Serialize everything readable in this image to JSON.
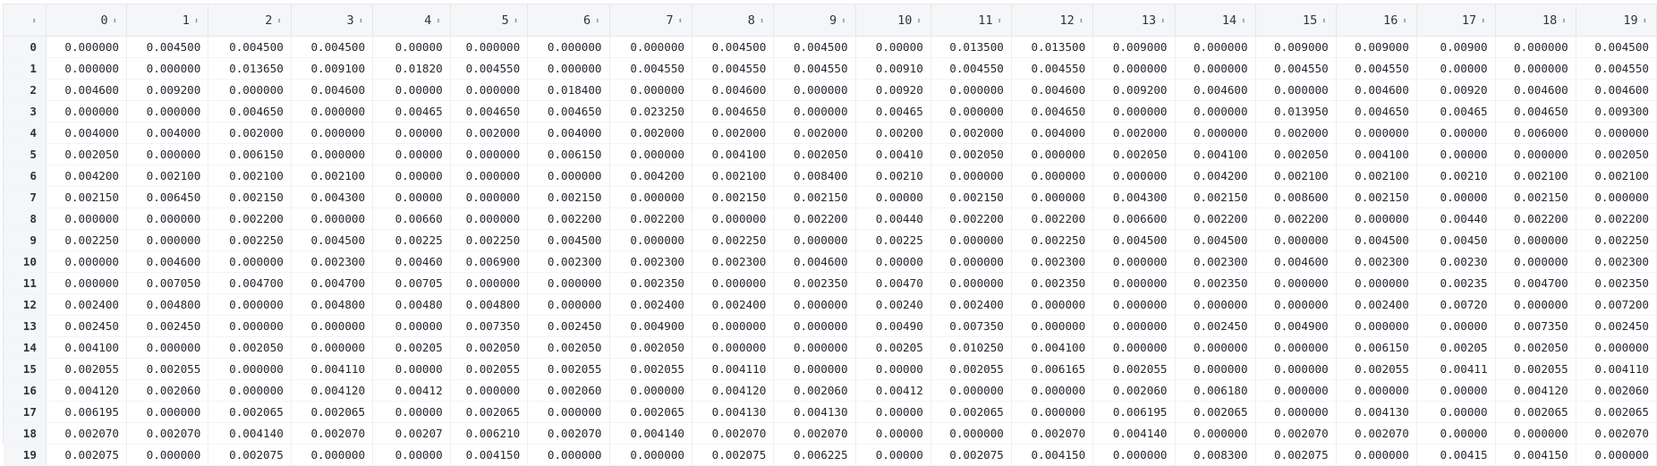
{
  "table": {
    "index_header": "",
    "columns": [
      "0",
      "1",
      "2",
      "3",
      "4",
      "5",
      "6",
      "7",
      "8",
      "9",
      "10",
      "11",
      "12",
      "13",
      "14",
      "15",
      "16",
      "17",
      "18",
      "19"
    ],
    "rows": [
      {
        "index": "0",
        "cells": [
          "0.000000",
          "0.004500",
          "0.004500",
          "0.004500",
          "0.00000",
          "0.000000",
          "0.000000",
          "0.000000",
          "0.004500",
          "0.004500",
          "0.00000",
          "0.013500",
          "0.013500",
          "0.009000",
          "0.000000",
          "0.009000",
          "0.009000",
          "0.00900",
          "0.000000",
          "0.004500"
        ]
      },
      {
        "index": "1",
        "cells": [
          "0.000000",
          "0.000000",
          "0.013650",
          "0.009100",
          "0.01820",
          "0.004550",
          "0.000000",
          "0.004550",
          "0.004550",
          "0.004550",
          "0.00910",
          "0.004550",
          "0.004550",
          "0.000000",
          "0.000000",
          "0.004550",
          "0.004550",
          "0.00000",
          "0.000000",
          "0.004550"
        ]
      },
      {
        "index": "2",
        "cells": [
          "0.004600",
          "0.009200",
          "0.000000",
          "0.004600",
          "0.00000",
          "0.000000",
          "0.018400",
          "0.000000",
          "0.004600",
          "0.000000",
          "0.00920",
          "0.000000",
          "0.004600",
          "0.009200",
          "0.004600",
          "0.000000",
          "0.004600",
          "0.00920",
          "0.004600",
          "0.004600"
        ]
      },
      {
        "index": "3",
        "cells": [
          "0.000000",
          "0.000000",
          "0.004650",
          "0.000000",
          "0.00465",
          "0.004650",
          "0.004650",
          "0.023250",
          "0.004650",
          "0.000000",
          "0.00465",
          "0.000000",
          "0.004650",
          "0.000000",
          "0.000000",
          "0.013950",
          "0.004650",
          "0.00465",
          "0.004650",
          "0.009300"
        ]
      },
      {
        "index": "4",
        "cells": [
          "0.004000",
          "0.004000",
          "0.002000",
          "0.000000",
          "0.00000",
          "0.002000",
          "0.004000",
          "0.002000",
          "0.002000",
          "0.002000",
          "0.00200",
          "0.002000",
          "0.004000",
          "0.002000",
          "0.000000",
          "0.002000",
          "0.000000",
          "0.00000",
          "0.006000",
          "0.000000"
        ]
      },
      {
        "index": "5",
        "cells": [
          "0.002050",
          "0.000000",
          "0.006150",
          "0.000000",
          "0.00000",
          "0.000000",
          "0.006150",
          "0.000000",
          "0.004100",
          "0.002050",
          "0.00410",
          "0.002050",
          "0.000000",
          "0.002050",
          "0.004100",
          "0.002050",
          "0.004100",
          "0.00000",
          "0.000000",
          "0.002050"
        ]
      },
      {
        "index": "6",
        "cells": [
          "0.004200",
          "0.002100",
          "0.002100",
          "0.002100",
          "0.00000",
          "0.000000",
          "0.000000",
          "0.004200",
          "0.002100",
          "0.008400",
          "0.00210",
          "0.000000",
          "0.000000",
          "0.000000",
          "0.004200",
          "0.002100",
          "0.002100",
          "0.00210",
          "0.002100",
          "0.002100"
        ]
      },
      {
        "index": "7",
        "cells": [
          "0.002150",
          "0.006450",
          "0.002150",
          "0.004300",
          "0.00000",
          "0.000000",
          "0.002150",
          "0.000000",
          "0.002150",
          "0.002150",
          "0.00000",
          "0.002150",
          "0.000000",
          "0.004300",
          "0.002150",
          "0.008600",
          "0.002150",
          "0.00000",
          "0.002150",
          "0.000000"
        ]
      },
      {
        "index": "8",
        "cells": [
          "0.000000",
          "0.000000",
          "0.002200",
          "0.000000",
          "0.00660",
          "0.000000",
          "0.002200",
          "0.002200",
          "0.000000",
          "0.002200",
          "0.00440",
          "0.002200",
          "0.002200",
          "0.006600",
          "0.002200",
          "0.002200",
          "0.000000",
          "0.00440",
          "0.002200",
          "0.002200"
        ]
      },
      {
        "index": "9",
        "cells": [
          "0.002250",
          "0.000000",
          "0.002250",
          "0.004500",
          "0.00225",
          "0.002250",
          "0.004500",
          "0.000000",
          "0.002250",
          "0.000000",
          "0.00225",
          "0.000000",
          "0.002250",
          "0.004500",
          "0.004500",
          "0.000000",
          "0.004500",
          "0.00450",
          "0.000000",
          "0.002250"
        ]
      },
      {
        "index": "10",
        "cells": [
          "0.000000",
          "0.004600",
          "0.000000",
          "0.002300",
          "0.00460",
          "0.006900",
          "0.002300",
          "0.002300",
          "0.002300",
          "0.004600",
          "0.00000",
          "0.000000",
          "0.002300",
          "0.000000",
          "0.002300",
          "0.004600",
          "0.002300",
          "0.00230",
          "0.000000",
          "0.002300"
        ]
      },
      {
        "index": "11",
        "cells": [
          "0.000000",
          "0.007050",
          "0.004700",
          "0.004700",
          "0.00705",
          "0.000000",
          "0.000000",
          "0.002350",
          "0.000000",
          "0.002350",
          "0.00470",
          "0.000000",
          "0.002350",
          "0.000000",
          "0.002350",
          "0.000000",
          "0.000000",
          "0.00235",
          "0.004700",
          "0.002350"
        ]
      },
      {
        "index": "12",
        "cells": [
          "0.002400",
          "0.004800",
          "0.000000",
          "0.004800",
          "0.00480",
          "0.004800",
          "0.000000",
          "0.002400",
          "0.002400",
          "0.000000",
          "0.00240",
          "0.002400",
          "0.000000",
          "0.000000",
          "0.000000",
          "0.000000",
          "0.002400",
          "0.00720",
          "0.000000",
          "0.007200"
        ]
      },
      {
        "index": "13",
        "cells": [
          "0.002450",
          "0.002450",
          "0.000000",
          "0.000000",
          "0.00000",
          "0.007350",
          "0.002450",
          "0.004900",
          "0.000000",
          "0.000000",
          "0.00490",
          "0.007350",
          "0.000000",
          "0.000000",
          "0.002450",
          "0.004900",
          "0.000000",
          "0.00000",
          "0.007350",
          "0.002450"
        ]
      },
      {
        "index": "14",
        "cells": [
          "0.004100",
          "0.000000",
          "0.002050",
          "0.000000",
          "0.00205",
          "0.002050",
          "0.002050",
          "0.002050",
          "0.000000",
          "0.000000",
          "0.00205",
          "0.010250",
          "0.004100",
          "0.000000",
          "0.000000",
          "0.000000",
          "0.006150",
          "0.00205",
          "0.002050",
          "0.000000"
        ]
      },
      {
        "index": "15",
        "cells": [
          "0.002055",
          "0.002055",
          "0.000000",
          "0.004110",
          "0.00000",
          "0.002055",
          "0.002055",
          "0.002055",
          "0.004110",
          "0.000000",
          "0.00000",
          "0.002055",
          "0.006165",
          "0.002055",
          "0.000000",
          "0.000000",
          "0.002055",
          "0.00411",
          "0.002055",
          "0.004110"
        ]
      },
      {
        "index": "16",
        "cells": [
          "0.004120",
          "0.002060",
          "0.000000",
          "0.004120",
          "0.00412",
          "0.000000",
          "0.002060",
          "0.000000",
          "0.004120",
          "0.002060",
          "0.00412",
          "0.000000",
          "0.000000",
          "0.002060",
          "0.006180",
          "0.000000",
          "0.000000",
          "0.00000",
          "0.004120",
          "0.002060"
        ]
      },
      {
        "index": "17",
        "cells": [
          "0.006195",
          "0.000000",
          "0.002065",
          "0.002065",
          "0.00000",
          "0.002065",
          "0.000000",
          "0.002065",
          "0.004130",
          "0.004130",
          "0.00000",
          "0.002065",
          "0.000000",
          "0.006195",
          "0.002065",
          "0.000000",
          "0.004130",
          "0.00000",
          "0.002065",
          "0.002065"
        ]
      },
      {
        "index": "18",
        "cells": [
          "0.002070",
          "0.002070",
          "0.004140",
          "0.002070",
          "0.00207",
          "0.006210",
          "0.002070",
          "0.004140",
          "0.002070",
          "0.002070",
          "0.00000",
          "0.000000",
          "0.002070",
          "0.004140",
          "0.000000",
          "0.002070",
          "0.002070",
          "0.00000",
          "0.000000",
          "0.002070"
        ]
      },
      {
        "index": "19",
        "cells": [
          "0.002075",
          "0.000000",
          "0.002075",
          "0.000000",
          "0.00000",
          "0.004150",
          "0.000000",
          "0.000000",
          "0.002075",
          "0.006225",
          "0.00000",
          "0.002075",
          "0.004150",
          "0.000000",
          "0.008300",
          "0.002075",
          "0.000000",
          "0.00415",
          "0.004150",
          "0.000000"
        ]
      }
    ]
  }
}
